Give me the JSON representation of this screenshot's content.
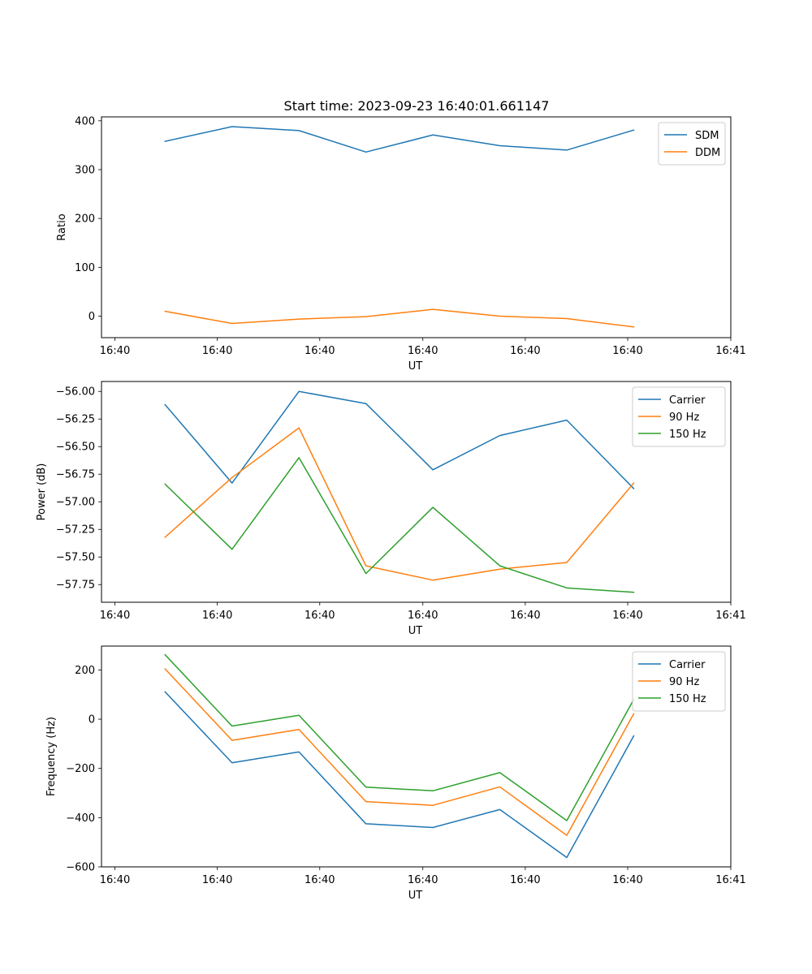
{
  "figure_title": "Start time: 2023-09-23 16:40:01.661147",
  "chart_data": [
    {
      "type": "line",
      "title": "Start time: 2023-09-23 16:40:01.661147",
      "xlabel": "UT",
      "ylabel": "Ratio",
      "x": [
        1,
        2,
        3,
        4,
        5,
        6,
        7,
        8
      ],
      "x_ticks": [
        {
          "value": 0.25,
          "label": "16:40"
        },
        {
          "value": 1.78,
          "label": "16:40"
        },
        {
          "value": 3.31,
          "label": "16:40"
        },
        {
          "value": 4.85,
          "label": "16:40"
        },
        {
          "value": 6.38,
          "label": "16:40"
        },
        {
          "value": 7.91,
          "label": "16:40"
        },
        {
          "value": 9.45,
          "label": "16:41"
        }
      ],
      "xlim": [
        0.05,
        9.45
      ],
      "ylim": [
        -44,
        408
      ],
      "y_ticks": [
        {
          "value": 400,
          "label": "400"
        },
        {
          "value": 300,
          "label": "300"
        },
        {
          "value": 200,
          "label": "200"
        },
        {
          "value": 100,
          "label": "100"
        },
        {
          "value": 0,
          "label": "0"
        }
      ],
      "legend_position": "top-right",
      "series": [
        {
          "name": "SDM",
          "color": "#1f77b4",
          "values": [
            358,
            388,
            380,
            336,
            371,
            349,
            340,
            381
          ]
        },
        {
          "name": "DDM",
          "color": "#ff7f0e",
          "values": [
            10,
            -15,
            -6,
            -1,
            14,
            0,
            -5,
            -22
          ]
        }
      ]
    },
    {
      "type": "line",
      "xlabel": "UT",
      "ylabel": "Power (dB)",
      "x": [
        1,
        2,
        3,
        4,
        5,
        6,
        7,
        8
      ],
      "x_ticks": [
        {
          "value": 0.25,
          "label": "16:40"
        },
        {
          "value": 1.78,
          "label": "16:40"
        },
        {
          "value": 3.31,
          "label": "16:40"
        },
        {
          "value": 4.85,
          "label": "16:40"
        },
        {
          "value": 6.38,
          "label": "16:40"
        },
        {
          "value": 7.91,
          "label": "16:40"
        },
        {
          "value": 9.45,
          "label": "16:41"
        }
      ],
      "xlim": [
        0.05,
        9.45
      ],
      "ylim": [
        -57.91,
        -55.91
      ],
      "y_ticks": [
        {
          "value": -56.0,
          "label": "−56.00"
        },
        {
          "value": -56.25,
          "label": "−56.25"
        },
        {
          "value": -56.5,
          "label": "−56.50"
        },
        {
          "value": -56.75,
          "label": "−56.75"
        },
        {
          "value": -57.0,
          "label": "−57.00"
        },
        {
          "value": -57.25,
          "label": "−57.25"
        },
        {
          "value": -57.5,
          "label": "−57.50"
        },
        {
          "value": -57.75,
          "label": "−57.75"
        }
      ],
      "legend_position": "top-right",
      "series": [
        {
          "name": "Carrier",
          "color": "#1f77b4",
          "values": [
            -56.12,
            -56.83,
            -56.0,
            -56.11,
            -56.71,
            -56.4,
            -56.26,
            -56.88
          ]
        },
        {
          "name": "90 Hz",
          "color": "#ff7f0e",
          "values": [
            -57.32,
            -56.78,
            -56.33,
            -57.58,
            -57.71,
            -57.61,
            -57.55,
            -56.83
          ]
        },
        {
          "name": "150 Hz",
          "color": "#2ca02c",
          "values": [
            -56.84,
            -57.43,
            -56.6,
            -57.65,
            -57.05,
            -57.58,
            -57.78,
            -57.82
          ]
        }
      ]
    },
    {
      "type": "line",
      "xlabel": "UT",
      "ylabel": "Frequency (Hz)",
      "x": [
        1,
        2,
        3,
        4,
        5,
        6,
        7,
        8
      ],
      "x_ticks": [
        {
          "value": 0.25,
          "label": "16:40"
        },
        {
          "value": 1.78,
          "label": "16:40"
        },
        {
          "value": 3.31,
          "label": "16:40"
        },
        {
          "value": 4.85,
          "label": "16:40"
        },
        {
          "value": 6.38,
          "label": "16:40"
        },
        {
          "value": 7.91,
          "label": "16:40"
        },
        {
          "value": 9.45,
          "label": "16:41"
        }
      ],
      "xlim": [
        0.05,
        9.45
      ],
      "ylim": [
        -600,
        297
      ],
      "y_ticks": [
        {
          "value": 200,
          "label": "200"
        },
        {
          "value": 0,
          "label": "0"
        },
        {
          "value": -200,
          "label": "−200"
        },
        {
          "value": -400,
          "label": "−400"
        },
        {
          "value": -600,
          "label": "−600"
        }
      ],
      "legend_position": "top-right",
      "series": [
        {
          "name": "Carrier",
          "color": "#1f77b4",
          "values": [
            111,
            -177,
            -133,
            -425,
            -440,
            -367,
            -562,
            -68
          ]
        },
        {
          "name": "90 Hz",
          "color": "#ff7f0e",
          "values": [
            204,
            -86,
            -42,
            -335,
            -350,
            -275,
            -472,
            22
          ]
        },
        {
          "name": "150 Hz",
          "color": "#2ca02c",
          "values": [
            262,
            -28,
            16,
            -276,
            -291,
            -217,
            -412,
            80
          ]
        }
      ]
    }
  ]
}
